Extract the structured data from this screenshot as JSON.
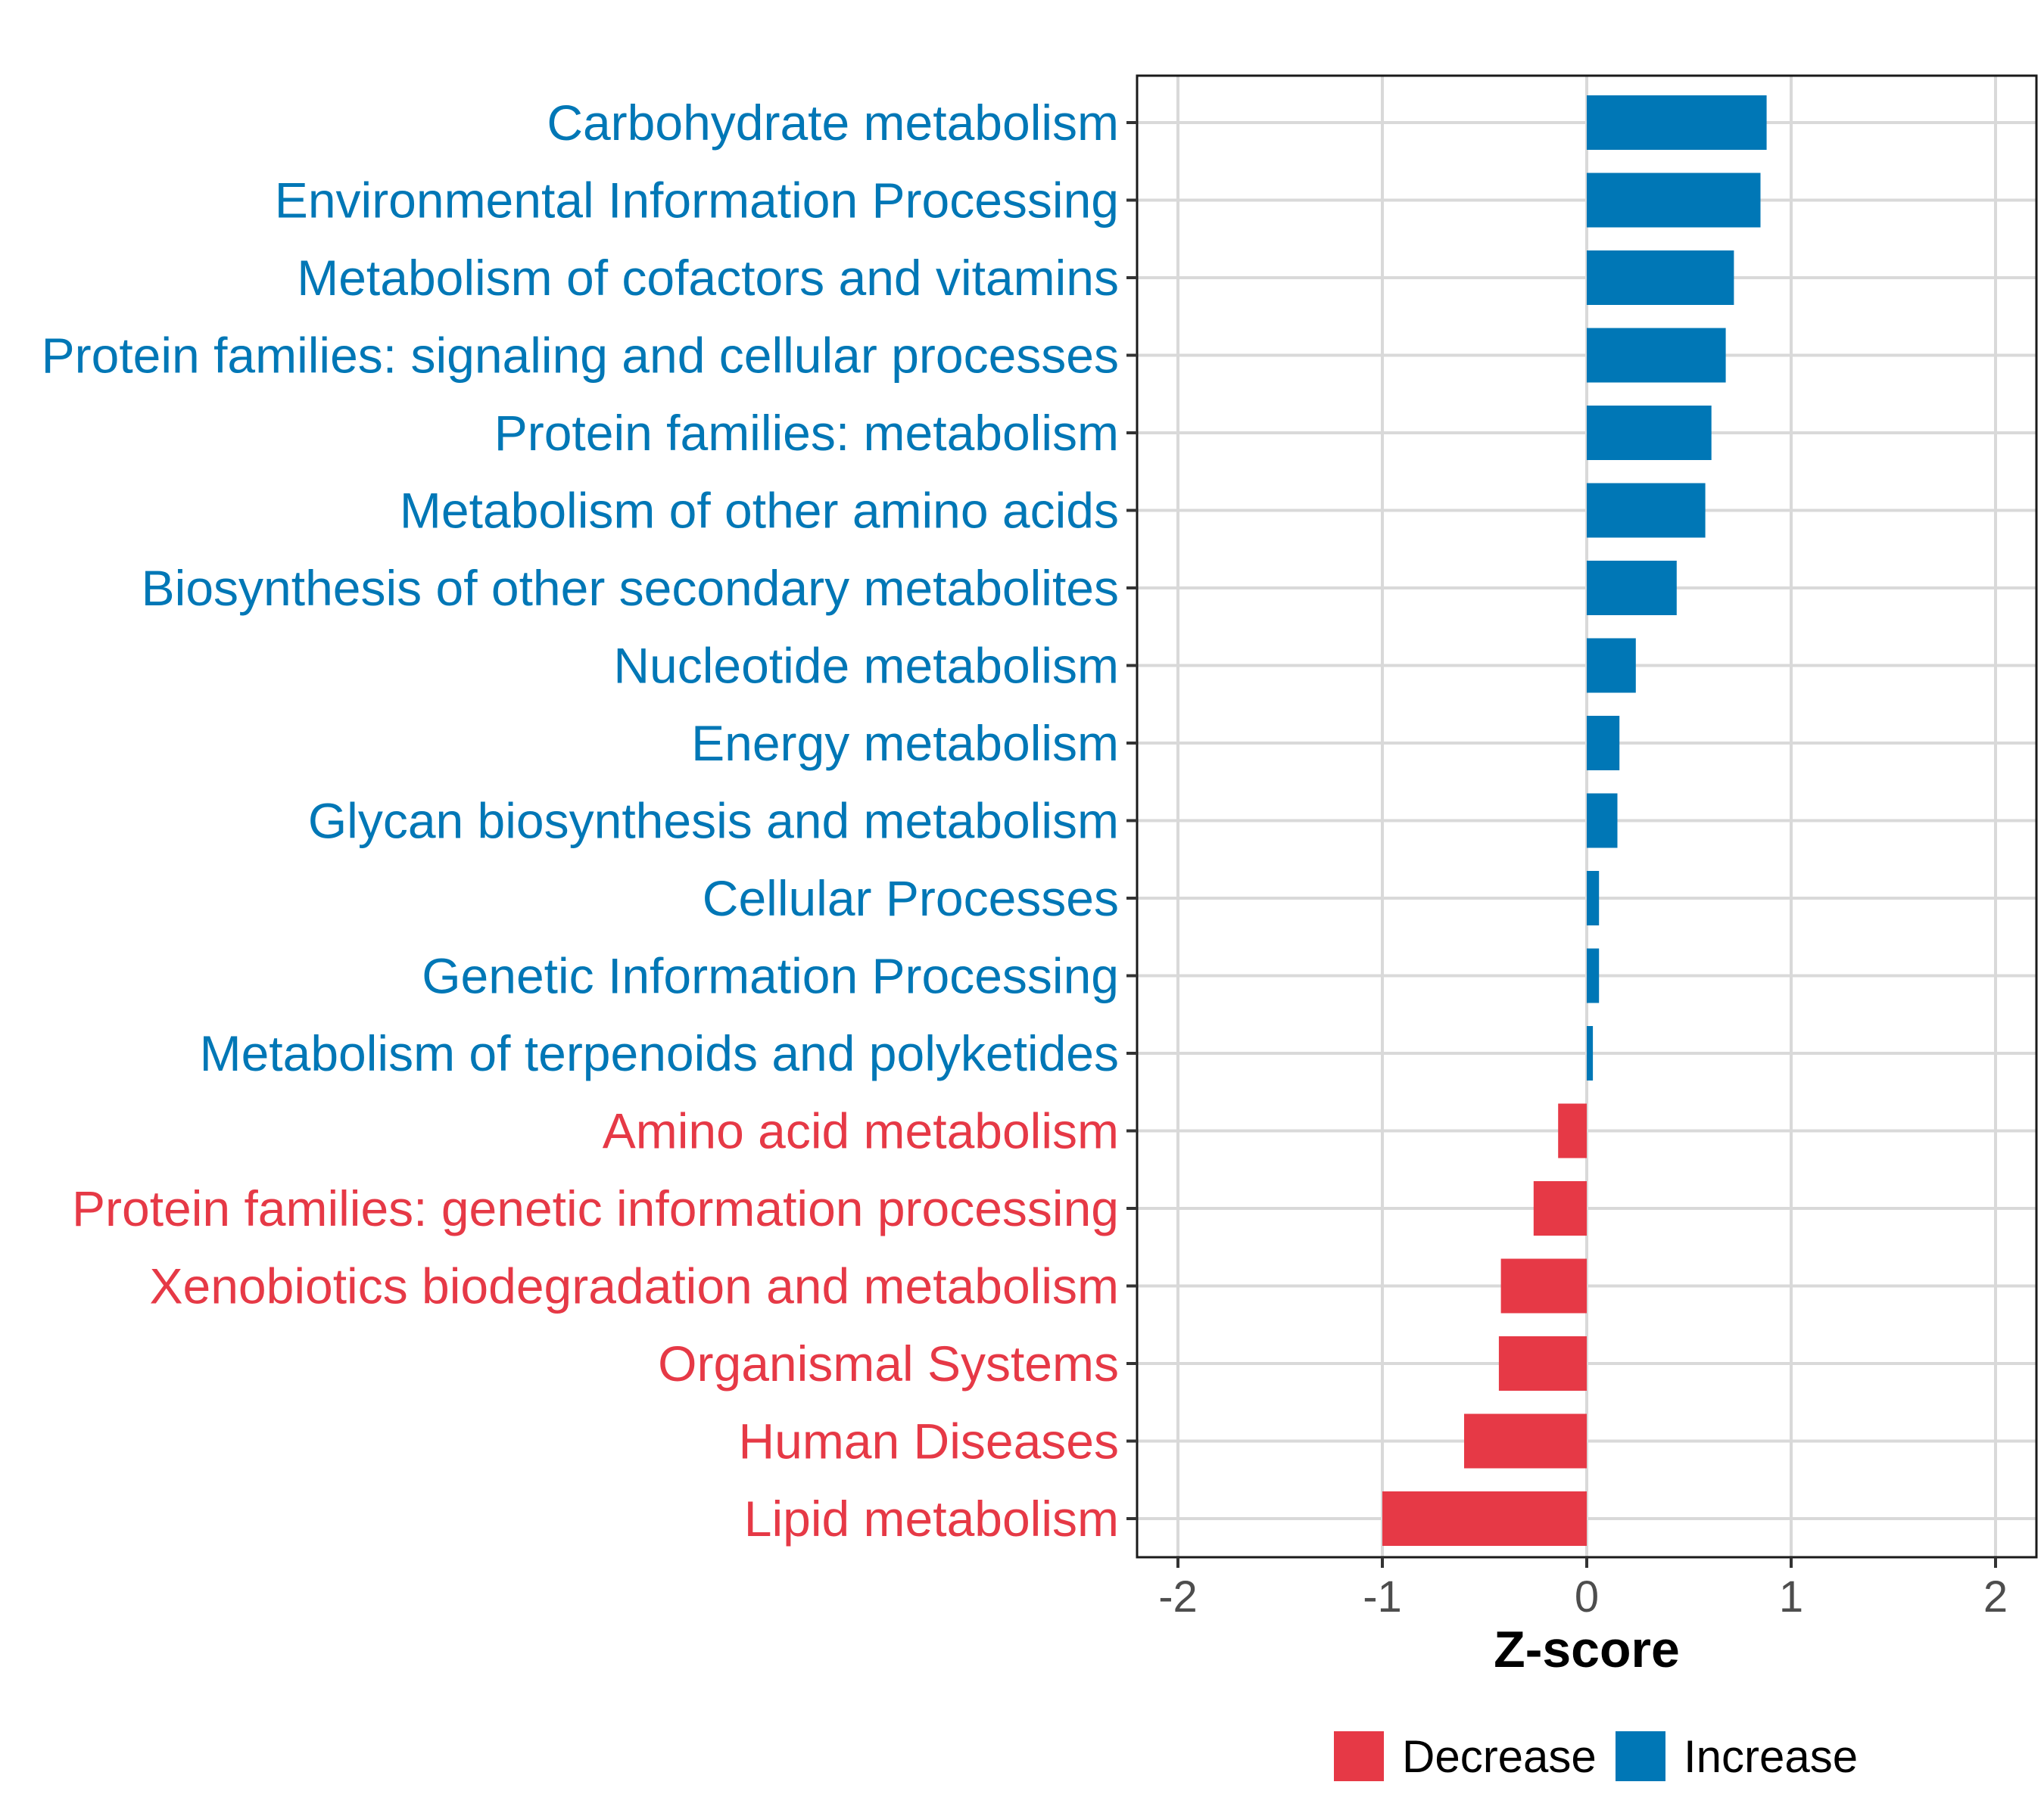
{
  "chart_data": {
    "type": "bar",
    "orientation": "horizontal",
    "title": "",
    "xlabel": "Z-score",
    "ylabel": "",
    "xlim": [
      -2.2,
      2.2
    ],
    "xticks": [
      -2,
      -1,
      0,
      1,
      2
    ],
    "xtick_labels": [
      "-2",
      "-1",
      "0",
      "1",
      "2"
    ],
    "grid": true,
    "legend_position": "bottom",
    "colors": {
      "Decrease": "#e63946",
      "Increase": "#0077b6"
    },
    "legend": [
      {
        "name": "Decrease",
        "color": "#e63946"
      },
      {
        "name": "Increase",
        "color": "#0077b6"
      }
    ],
    "categories": [
      "Carbohydrate metabolism",
      "Environmental Information Processing",
      "Metabolism of cofactors and vitamins",
      "Protein families: signaling and cellular processes",
      "Protein families: metabolism",
      "Metabolism of other amino acids",
      "Biosynthesis of other secondary metabolites",
      "Nucleotide metabolism",
      "Energy metabolism",
      "Glycan biosynthesis and metabolism",
      "Cellular Processes",
      "Genetic Information Processing",
      "Metabolism of terpenoids and polyketides",
      "Amino acid metabolism",
      "Protein families: genetic information processing",
      "Xenobiotics biodegradation and metabolism",
      "Organismal Systems",
      "Human Diseases",
      "Lipid metabolism"
    ],
    "values": [
      0.88,
      0.85,
      0.72,
      0.68,
      0.61,
      0.58,
      0.44,
      0.24,
      0.16,
      0.15,
      0.06,
      0.06,
      0.03,
      -0.14,
      -0.26,
      -0.42,
      -0.43,
      -0.6,
      -1.0
    ],
    "groups": [
      "Increase",
      "Increase",
      "Increase",
      "Increase",
      "Increase",
      "Increase",
      "Increase",
      "Increase",
      "Increase",
      "Increase",
      "Increase",
      "Increase",
      "Increase",
      "Decrease",
      "Decrease",
      "Decrease",
      "Decrease",
      "Decrease",
      "Decrease"
    ]
  }
}
